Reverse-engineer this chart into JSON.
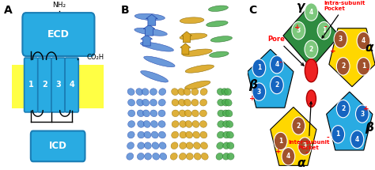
{
  "panel_A": {
    "ecd_color": "#29ABE2",
    "icd_color": "#29ABE2",
    "membrane_color": "#FFFF44",
    "tm_color": "#29ABE2",
    "tm_edge_color": "#1A7DB5",
    "tm_labels": [
      "1",
      "2",
      "3",
      "4"
    ],
    "ecd_label": "ECD",
    "icd_label": "ICD",
    "nh2_label": "NH₂",
    "co2h_label": "CO₂H",
    "panel_label": "A"
  },
  "panel_B": {
    "panel_label": "B",
    "blue_color": "#5B8ED6",
    "gold_color": "#DAA520",
    "green_color": "#4CAF50"
  },
  "panel_C": {
    "panel_label": "C",
    "gamma_bg": "#2E8B40",
    "alpha_bg": "#FFD700",
    "beta_bg": "#29ABE2",
    "alpha_circles": "#A0522D",
    "beta_circles": "#1565C0",
    "gamma_circles": "#7DC87D",
    "pore_color": "#EE2222",
    "red_label": "#FF0000",
    "black_label": "#000000"
  },
  "bg_color": "#FFFFFF",
  "fig_label_fontsize": 10,
  "fig_label_fontweight": "bold"
}
